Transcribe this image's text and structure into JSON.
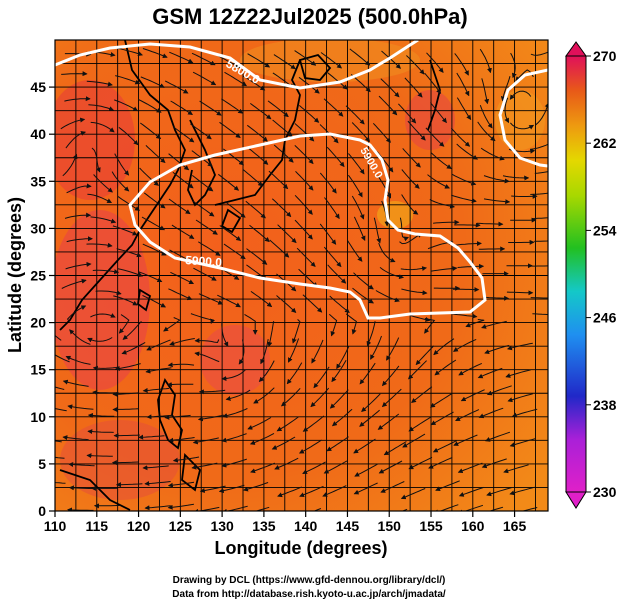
{
  "title": "GSM 12Z22Jul2025 (500.0hPa)",
  "axes": {
    "xlabel": "Longitude (degrees)",
    "ylabel": "Latitude (degrees)",
    "xlim": [
      110,
      169
    ],
    "ylim": [
      0,
      50
    ],
    "xticks": [
      "110",
      "115",
      "120",
      "125",
      "130",
      "135",
      "140",
      "145",
      "150",
      "155",
      "160",
      "165"
    ],
    "yticks": [
      "0",
      "5",
      "10",
      "15",
      "20",
      "25",
      "30",
      "35",
      "40",
      "45"
    ],
    "grid": true
  },
  "colorbar": {
    "min": 230,
    "max": 270,
    "labels": [
      "270",
      "262",
      "254",
      "246",
      "238",
      "230"
    ],
    "colors": [
      "#e0105a",
      "#e03c1c",
      "#ee7a10",
      "#e4d800",
      "#22c020",
      "#14c8c8",
      "#1f8ff0",
      "#2028c8",
      "#aa20d8",
      "#e020c8"
    ]
  },
  "contours": [
    {
      "label": "5900.0"
    },
    {
      "label": "5900.0"
    },
    {
      "label": "5800.0"
    }
  ],
  "credits": {
    "line1": "Drawing by DCL (https://www.gfd-dennou.org/library/dcl/)",
    "line2": "Data from http://database.rish.kyoto-u.ac.jp/arch/jmadata/"
  }
}
